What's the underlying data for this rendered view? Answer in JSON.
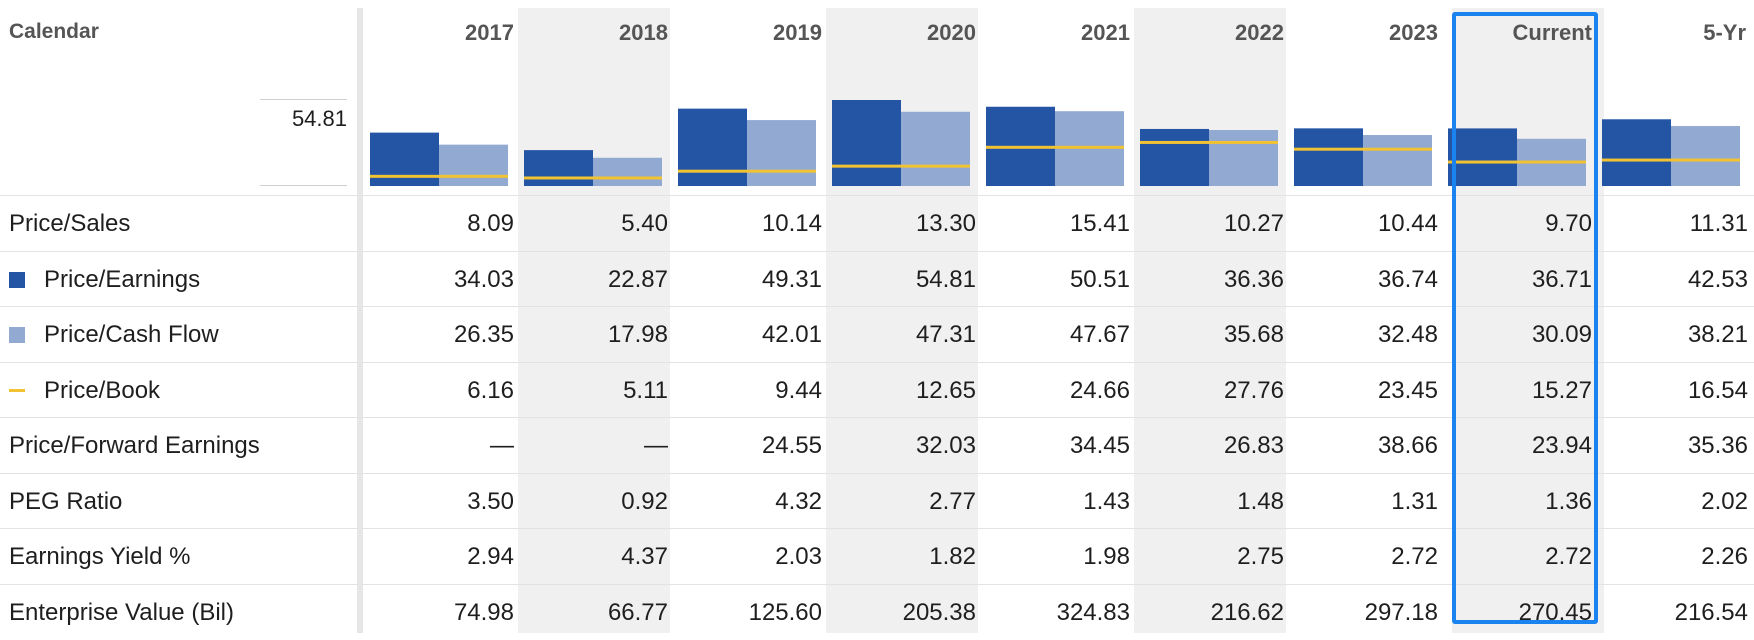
{
  "header": {
    "calendar_label": "Calendar",
    "scale_value": "54.81"
  },
  "columns": [
    "2017",
    "2018",
    "2019",
    "2020",
    "2021",
    "2022",
    "2023",
    "Current",
    "5-Yr"
  ],
  "rows": [
    {
      "label": "Price/Sales",
      "legend": null,
      "values": [
        "8.09",
        "5.40",
        "10.14",
        "13.30",
        "15.41",
        "10.27",
        "10.44",
        "9.70",
        "11.31"
      ]
    },
    {
      "label": "Price/Earnings",
      "legend": "dark-square",
      "values": [
        "34.03",
        "22.87",
        "49.31",
        "54.81",
        "50.51",
        "36.36",
        "36.74",
        "36.71",
        "42.53"
      ]
    },
    {
      "label": "Price/Cash Flow",
      "legend": "light-square",
      "values": [
        "26.35",
        "17.98",
        "42.01",
        "47.31",
        "47.67",
        "35.68",
        "32.48",
        "30.09",
        "38.21"
      ]
    },
    {
      "label": "Price/Book",
      "legend": "gold-line",
      "values": [
        "6.16",
        "5.11",
        "9.44",
        "12.65",
        "24.66",
        "27.76",
        "23.45",
        "15.27",
        "16.54"
      ]
    },
    {
      "label": "Price/Forward Earnings",
      "legend": null,
      "values": [
        "—",
        "—",
        "24.55",
        "32.03",
        "34.45",
        "26.83",
        "38.66",
        "23.94",
        "35.36"
      ]
    },
    {
      "label": "PEG Ratio",
      "legend": null,
      "values": [
        "3.50",
        "0.92",
        "4.32",
        "2.77",
        "1.43",
        "1.48",
        "1.31",
        "1.36",
        "2.02"
      ]
    },
    {
      "label": "Earnings Yield %",
      "legend": null,
      "values": [
        "2.94",
        "4.37",
        "2.03",
        "1.82",
        "1.98",
        "2.75",
        "2.72",
        "2.72",
        "2.26"
      ]
    },
    {
      "label": "Enterprise Value (Bil)",
      "legend": null,
      "values": [
        "74.98",
        "66.77",
        "125.60",
        "205.38",
        "324.83",
        "216.62",
        "297.18",
        "270.45",
        "216.54"
      ]
    }
  ],
  "colors": {
    "price_earnings_bar": "#2455a4",
    "price_cash_flow_bar": "#92a9d2",
    "price_book_line": "#f1c232",
    "current_highlight": "#1a83f0",
    "stripe": "#f0f0f0"
  },
  "chart_data": {
    "type": "bar",
    "categories": [
      "2017",
      "2018",
      "2019",
      "2020",
      "2021",
      "2022",
      "2023",
      "Current",
      "5-Yr"
    ],
    "ylim": [
      0,
      54.81
    ],
    "series": [
      {
        "name": "Price/Earnings",
        "kind": "bar",
        "values": [
          34.03,
          22.87,
          49.31,
          54.81,
          50.51,
          36.36,
          36.74,
          36.71,
          42.53
        ]
      },
      {
        "name": "Price/Cash Flow",
        "kind": "bar",
        "values": [
          26.35,
          17.98,
          42.01,
          47.31,
          47.67,
          35.68,
          32.48,
          30.09,
          38.21
        ]
      },
      {
        "name": "Price/Book",
        "kind": "line-marker",
        "values": [
          6.16,
          5.11,
          9.44,
          12.65,
          24.66,
          27.76,
          23.45,
          15.27,
          16.54
        ]
      }
    ],
    "grid": false,
    "legend": "left column"
  }
}
